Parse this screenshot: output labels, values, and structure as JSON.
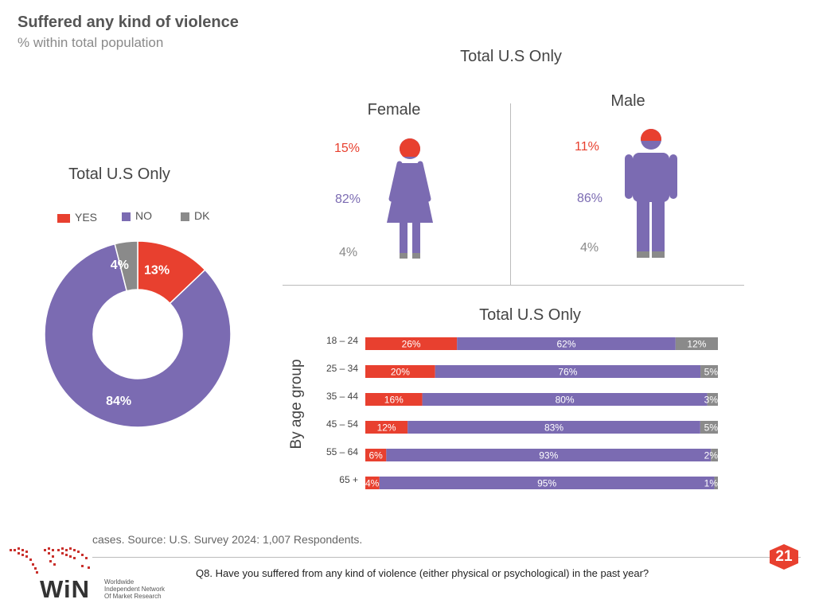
{
  "header": {
    "title": "Suffered any kind of violence",
    "subtitle": "% within total population"
  },
  "colors": {
    "yes": "#e8402f",
    "no": "#7b6bb2",
    "dk": "#8a8a8a"
  },
  "gender_panel": {
    "title": "Total U.S Only",
    "female": {
      "label": "Female",
      "yes": "15%",
      "no": "82%",
      "dk": "4%"
    },
    "male": {
      "label": "Male",
      "yes": "11%",
      "no": "86%",
      "dk": "4%"
    }
  },
  "chart_data": [
    {
      "type": "pie",
      "title": "Total U.S Only",
      "legend": [
        "YES",
        "NO",
        "DK"
      ],
      "slices": [
        {
          "label": "YES",
          "value": 13,
          "text": "13%"
        },
        {
          "label": "NO",
          "value": 84,
          "text": "84%"
        },
        {
          "label": "DK",
          "value": 4,
          "text": "4%"
        }
      ]
    },
    {
      "type": "bar",
      "title": "Total U.S Only",
      "ylabel": "By age group",
      "stacked": true,
      "orientation": "horizontal",
      "categories": [
        "18 – 24",
        "25 – 34",
        "35 – 44",
        "45 – 54",
        "55 – 64",
        "65 +"
      ],
      "series": [
        {
          "name": "YES",
          "values": [
            26,
            20,
            16,
            12,
            6,
            4
          ]
        },
        {
          "name": "NO",
          "values": [
            62,
            76,
            80,
            83,
            93,
            95
          ]
        },
        {
          "name": "DK",
          "values": [
            12,
            5,
            3,
            5,
            2,
            1
          ]
        }
      ]
    }
  ],
  "footer": {
    "source": "cases.  Source: U.S. Survey 2024: 1,007 Respondents.",
    "question": "Q8. Have you suffered from any kind of violence (either physical or psychological) in the past year?",
    "page_number": "21",
    "logo_text": "WiN",
    "logo_lines": [
      "Worldwide",
      "Independent Network",
      "Of Market Research"
    ]
  }
}
